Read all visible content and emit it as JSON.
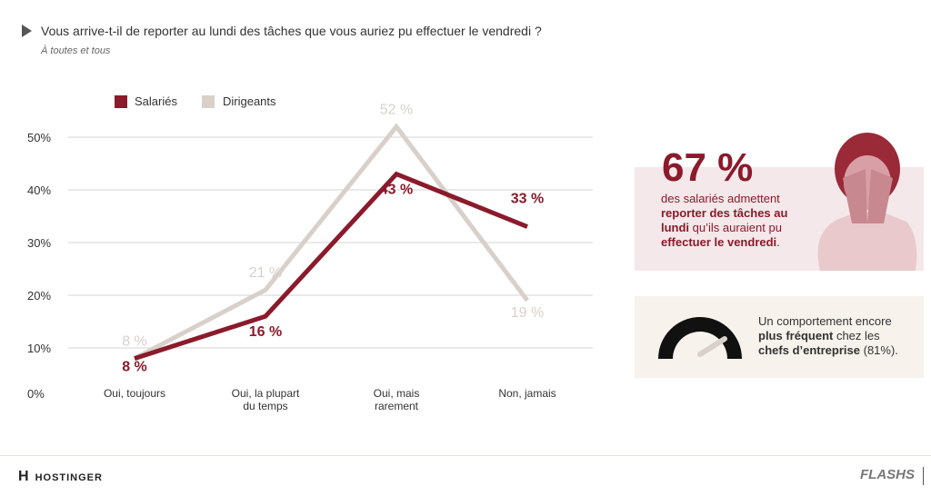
{
  "header": {
    "question": "Vous arrive-t-il de reporter au lundi des tâches que vous auriez pu effectuer le vendredi ?",
    "subtitle": "À toutes et tous"
  },
  "chart_data": {
    "type": "line",
    "categories": [
      "Oui, toujours",
      "Oui, la plupart du temps",
      "Oui, mais rarement",
      "Non, jamais"
    ],
    "yticks": [
      "0%",
      "10%",
      "20%",
      "30%",
      "40%",
      "50%"
    ],
    "ylim": [
      0,
      50
    ],
    "grid": true,
    "legend": "top-left",
    "series": [
      {
        "name": "Salariés",
        "values": [
          8,
          16,
          43,
          33
        ],
        "labels": [
          "8 %",
          "16 %",
          "43 %",
          "33 %"
        ],
        "color": "#8b1a2b"
      },
      {
        "name": "Dirigeants",
        "values": [
          8,
          21,
          52,
          19
        ],
        "labels": [
          "8 %",
          "21 %",
          "52 %",
          "19 %"
        ],
        "color": "#d9d0c9"
      }
    ]
  },
  "highlight": {
    "value": "67 %",
    "text_1": "des salariés admettent ",
    "bold_1": "reporter des tâches au lundi",
    "text_2": " qu’ils auraient pu ",
    "bold_2": "effectuer le vendredi",
    "text_3": "."
  },
  "gauge": {
    "text_1": "Un comportement encore ",
    "bold_1": "plus fréquent",
    "text_2": " chez les ",
    "bold_2": "chefs d’entreprise",
    "text_3": " (81%).",
    "value_percent": 81
  },
  "footer": {
    "brand": "HOSTINGER",
    "series_logo": "FLASHS"
  }
}
